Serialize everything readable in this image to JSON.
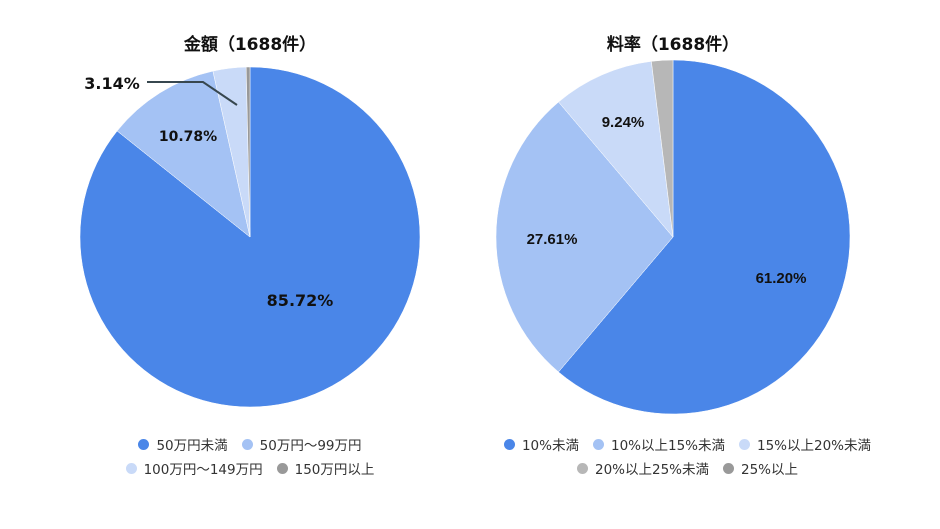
{
  "chart_data": [
    {
      "type": "pie",
      "title": "金額（1688件）",
      "categories": [
        "50万円未満",
        "50万円～99万円",
        "100万円～149万円",
        "150万円以上"
      ],
      "values": [
        85.72,
        10.78,
        3.14,
        0.36
      ],
      "data_labels": [
        "85.72%",
        "10.78%",
        "3.14%",
        ""
      ],
      "colors": [
        "#4a86e8",
        "#a4c2f4",
        "#c9daf8",
        "#999999"
      ],
      "legend_position": "bottom"
    },
    {
      "type": "pie",
      "title": "料率（1688件）",
      "categories": [
        "10%未満",
        "10%以上15%未満",
        "15%以上20%未満",
        "20%以上25%未満",
        "25%以上"
      ],
      "values": [
        61.2,
        27.61,
        9.24,
        1.95,
        0.0
      ],
      "data_labels": [
        "61.20%",
        "27.61%",
        "9.24%",
        "",
        ""
      ],
      "colors": [
        "#4a86e8",
        "#a4c2f4",
        "#c9daf8",
        "#b7b7b7",
        "#999999"
      ],
      "legend_position": "bottom"
    }
  ],
  "left_chart": {
    "title": "金額（1688件）",
    "labels": {
      "s0": "85.72%",
      "s1": "10.78%",
      "s2": "3.14%"
    },
    "legend": [
      "50万円未満",
      "50万円～99万円",
      "100万円～149万円",
      "150万円以上"
    ]
  },
  "right_chart": {
    "title": "料率（1688件）",
    "labels": {
      "s0": "61.20%",
      "s1": "27.61%",
      "s2": "9.24%"
    },
    "legend": [
      "10%未満",
      "10%以上15%未満",
      "15%以上20%未満",
      "20%以上25%未満",
      "25%以上"
    ]
  },
  "colors": {
    "blue": "#4a86e8",
    "light_blue": "#a4c2f4",
    "pale_blue": "#c9daf8",
    "light_gray": "#b7b7b7",
    "gray": "#999999"
  }
}
